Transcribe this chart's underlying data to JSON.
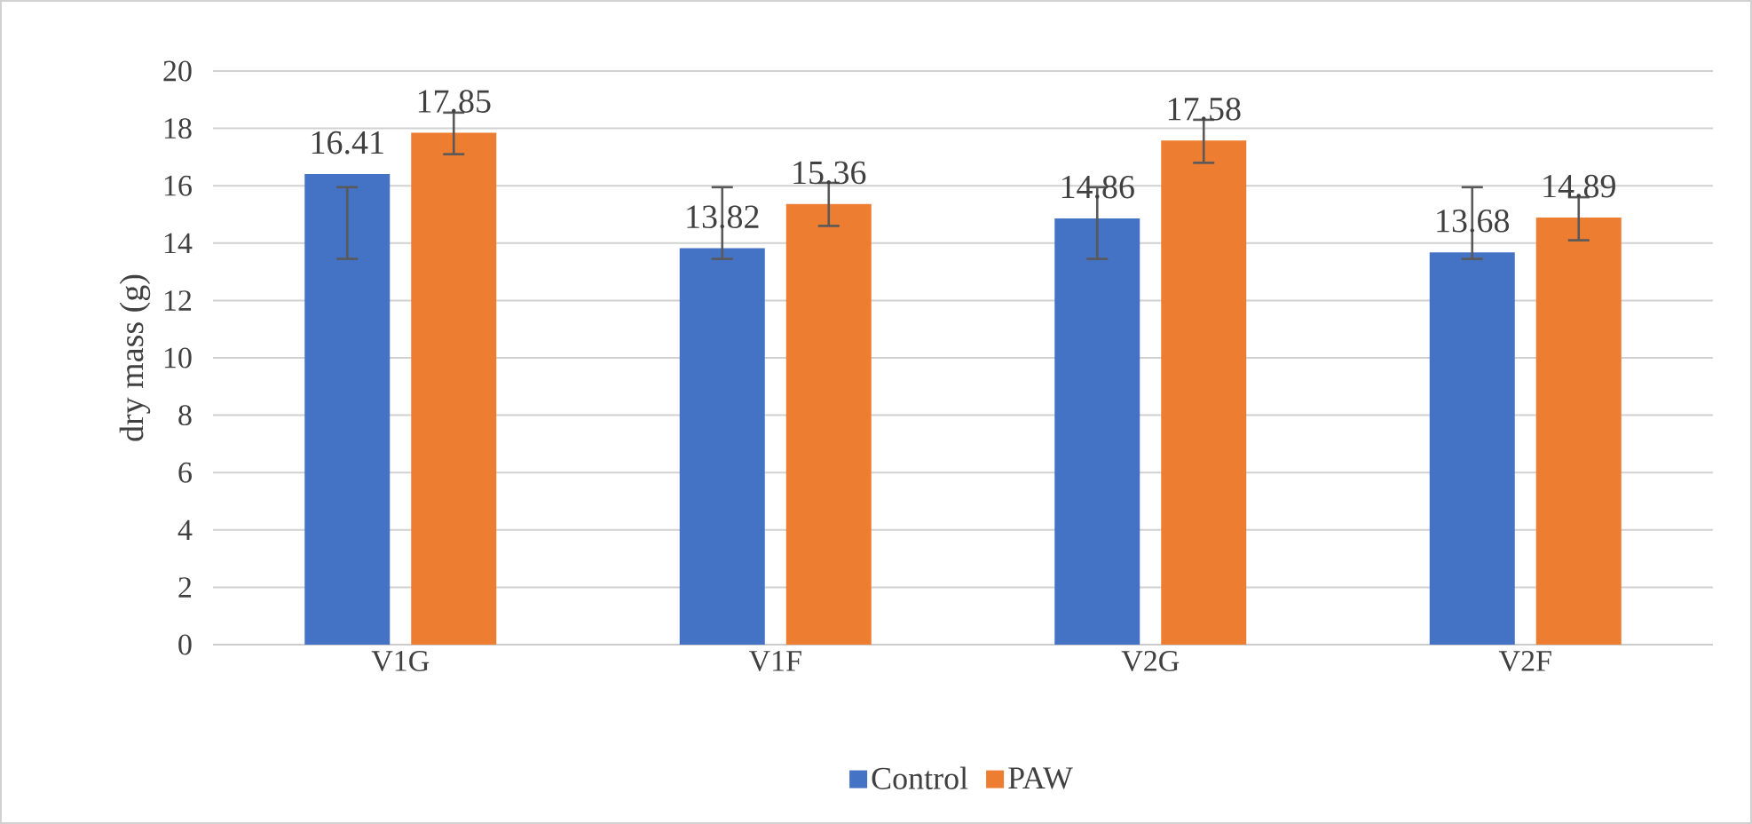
{
  "chart_data": {
    "type": "bar",
    "ylabel": "dry mass (g)",
    "categories": [
      "V1G",
      "V1F",
      "V2G",
      "V2F"
    ],
    "series": [
      {
        "name": "Control",
        "color": "#4472c4",
        "values": [
          16.41,
          13.82,
          14.86,
          13.68
        ],
        "errors": [
          [
            13.45,
            15.95
          ],
          [
            13.45,
            15.95
          ],
          [
            13.45,
            15.95
          ],
          [
            13.45,
            15.95
          ]
        ]
      },
      {
        "name": "PAW",
        "color": "#ed7d31",
        "values": [
          17.85,
          15.36,
          17.58,
          14.89
        ],
        "errors": [
          [
            17.1,
            18.55
          ],
          [
            14.6,
            16.1
          ],
          [
            16.8,
            18.3
          ],
          [
            14.1,
            15.6
          ]
        ]
      }
    ],
    "ylim": [
      0,
      20
    ],
    "yticks": [
      0,
      2,
      4,
      6,
      8,
      10,
      12,
      14,
      16,
      18,
      20
    ],
    "grid": "y",
    "legend": "bottom",
    "data_labels": true
  }
}
